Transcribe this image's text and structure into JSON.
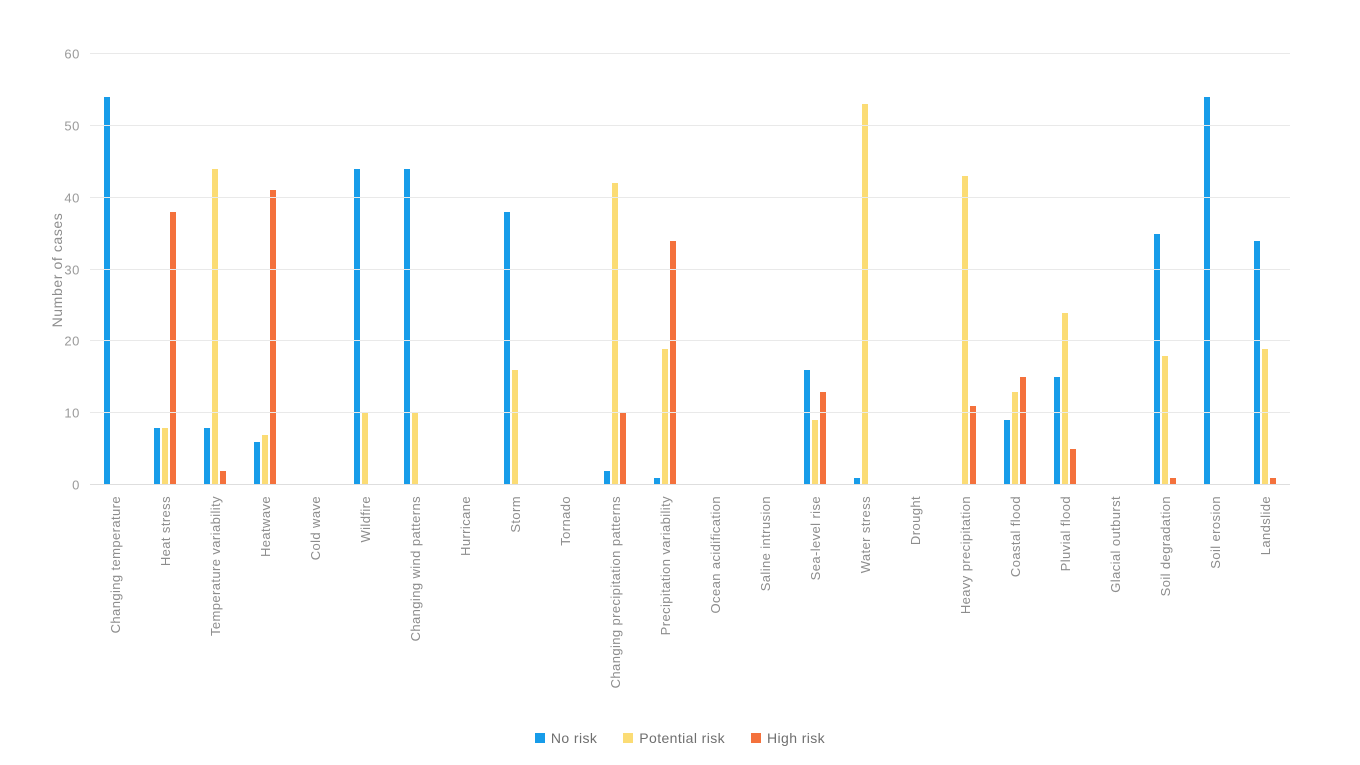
{
  "chart_data": {
    "type": "bar",
    "title": "",
    "xlabel": "",
    "ylabel": "Number of cases",
    "ylim": [
      0,
      60
    ],
    "yticks": [
      0,
      10,
      20,
      30,
      40,
      50,
      60
    ],
    "grid": true,
    "legend_position": "bottom",
    "categories": [
      "Changing temperature",
      "Heat stress",
      "Temperature variability",
      "Heatwave",
      "Cold wave",
      "Wildfire",
      "Changing wind patterns",
      "Hurricane",
      "Storm",
      "Tornado",
      "Changing precipitation patterns",
      "Precipitation variability",
      "Ocean acidification",
      "Saline intrusion",
      "Sea-level rise",
      "Water stress",
      "Drought",
      "Heavy precipitation",
      "Coastal flood",
      "Pluvial flood",
      "Glacial outburst",
      "Soil degradation",
      "Soil erosion",
      "Landslide"
    ],
    "series": [
      {
        "name": "No risk",
        "color": "#179CE9",
        "values": [
          54,
          8,
          8,
          6,
          0,
          44,
          44,
          0,
          38,
          0,
          2,
          1,
          0,
          0,
          16,
          1,
          0,
          0,
          9,
          15,
          0,
          35,
          54,
          34
        ]
      },
      {
        "name": "Potential risk",
        "color": "#FBDC75",
        "values": [
          0,
          8,
          44,
          7,
          0,
          10,
          10,
          0,
          16,
          0,
          42,
          19,
          0,
          0,
          9,
          53,
          0,
          43,
          13,
          24,
          0,
          18,
          0,
          19
        ]
      },
      {
        "name": "High risk",
        "color": "#F4713C",
        "values": [
          0,
          38,
          2,
          41,
          0,
          0,
          0,
          0,
          0,
          0,
          10,
          34,
          0,
          0,
          13,
          0,
          0,
          11,
          15,
          5,
          0,
          1,
          0,
          1
        ]
      }
    ]
  },
  "colors": {
    "background": "#ffffff",
    "gridline": "#e9e9e9",
    "axis_text": "#9a9a9a",
    "label_text": "#8d8d8d",
    "legend_text": "#6f6f6f"
  }
}
